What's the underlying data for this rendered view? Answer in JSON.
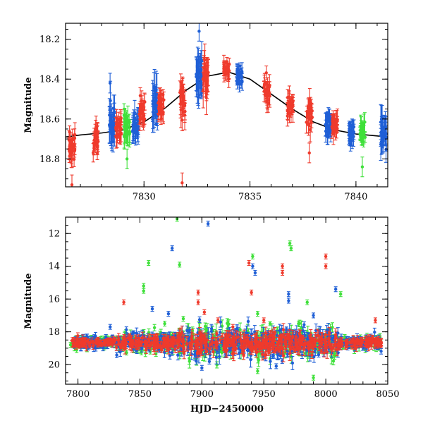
{
  "chart_data": [
    {
      "type": "scatter",
      "title": "",
      "xlabel": "",
      "ylabel": "Magnitude",
      "xlim": [
        7826.3,
        7841.5
      ],
      "ylim": [
        18.94,
        18.12
      ],
      "y_inverted": true,
      "xticks": [
        7830,
        7835,
        7840
      ],
      "yticks": [
        18.2,
        18.4,
        18.6,
        18.8
      ],
      "colors": {
        "blue": "#1f5fd6",
        "red": "#ef3a2c",
        "green": "#3fe03a",
        "model": "#000000"
      },
      "model_curve": {
        "x": [
          7826.3,
          7827,
          7828,
          7829,
          7830,
          7831,
          7832,
          7833,
          7834,
          7835,
          7836,
          7837,
          7838,
          7839,
          7840,
          7841,
          7841.5
        ],
        "y": [
          18.69,
          18.68,
          18.67,
          18.655,
          18.615,
          18.545,
          18.455,
          18.385,
          18.365,
          18.4,
          18.475,
          18.55,
          18.615,
          18.655,
          18.675,
          18.685,
          18.69
        ]
      },
      "clusters": [
        {
          "color": "red",
          "x": 7826.6,
          "y": 18.74,
          "spread": 0.09,
          "err": 0.05
        },
        {
          "color": "red",
          "x": 7827.7,
          "y": 18.7,
          "spread": 0.07,
          "err": 0.04
        },
        {
          "color": "blue",
          "x": 7828.5,
          "y": 18.63,
          "spread": 0.08,
          "err": 0.07
        },
        {
          "color": "red",
          "x": 7828.8,
          "y": 18.65,
          "spread": 0.06,
          "err": 0.04
        },
        {
          "color": "green",
          "x": 7829.2,
          "y": 18.64,
          "spread": 0.08,
          "err": 0.05
        },
        {
          "color": "blue",
          "x": 7829.6,
          "y": 18.64,
          "spread": 0.06,
          "err": 0.05
        },
        {
          "color": "red",
          "x": 7829.9,
          "y": 18.57,
          "spread": 0.07,
          "err": 0.04
        },
        {
          "color": "blue",
          "x": 7830.5,
          "y": 18.55,
          "spread": 0.1,
          "err": 0.07
        },
        {
          "color": "red",
          "x": 7830.8,
          "y": 18.54,
          "spread": 0.06,
          "err": 0.04
        },
        {
          "color": "red",
          "x": 7831.8,
          "y": 18.5,
          "spread": 0.09,
          "err": 0.06
        },
        {
          "color": "blue",
          "x": 7832.6,
          "y": 18.38,
          "spread": 0.09,
          "err": 0.07
        },
        {
          "color": "red",
          "x": 7832.9,
          "y": 18.4,
          "spread": 0.09,
          "err": 0.06
        },
        {
          "color": "red",
          "x": 7833.9,
          "y": 18.35,
          "spread": 0.04,
          "err": 0.03
        },
        {
          "color": "blue",
          "x": 7834.5,
          "y": 18.39,
          "spread": 0.05,
          "err": 0.03
        },
        {
          "color": "red",
          "x": 7835.8,
          "y": 18.46,
          "spread": 0.06,
          "err": 0.04
        },
        {
          "color": "red",
          "x": 7836.9,
          "y": 18.53,
          "spread": 0.06,
          "err": 0.04
        },
        {
          "color": "red",
          "x": 7837.8,
          "y": 18.58,
          "spread": 0.07,
          "err": 0.04
        },
        {
          "color": "blue",
          "x": 7838.7,
          "y": 18.63,
          "spread": 0.05,
          "err": 0.04
        },
        {
          "color": "red",
          "x": 7839.0,
          "y": 18.63,
          "spread": 0.05,
          "err": 0.04
        },
        {
          "color": "blue",
          "x": 7839.8,
          "y": 18.67,
          "spread": 0.05,
          "err": 0.04
        },
        {
          "color": "green",
          "x": 7840.3,
          "y": 18.67,
          "spread": 0.06,
          "err": 0.04
        },
        {
          "color": "blue",
          "x": 7841.3,
          "y": 18.66,
          "spread": 0.08,
          "err": 0.06
        }
      ],
      "outliers": [
        {
          "color": "red",
          "x": 7826.6,
          "y": 18.93
        },
        {
          "color": "red",
          "x": 7831.8,
          "y": 18.92
        },
        {
          "color": "green",
          "x": 7829.2,
          "y": 18.8
        },
        {
          "color": "blue",
          "x": 7832.6,
          "y": 18.16
        },
        {
          "color": "red",
          "x": 7837.8,
          "y": 18.77
        },
        {
          "color": "green",
          "x": 7840.3,
          "y": 18.84
        },
        {
          "color": "blue",
          "x": 7828.4,
          "y": 18.42
        }
      ]
    },
    {
      "type": "scatter",
      "title": "",
      "xlabel": "HJD−2450000",
      "ylabel": "Magnitude",
      "xlim": [
        7790,
        8050
      ],
      "ylim": [
        21.2,
        11
      ],
      "y_inverted": true,
      "xticks": [
        7800,
        7850,
        7900,
        7950,
        8000,
        8050
      ],
      "yticks": [
        12,
        14,
        16,
        18,
        20
      ],
      "colors": {
        "blue": "#1f5fd6",
        "red": "#ef3a2c",
        "green": "#3fe03a"
      },
      "baseline": {
        "x_start": 7800,
        "x_end": 8045,
        "y": 18.65
      },
      "scatter_bands": [
        {
          "x_start": 7795,
          "x_end": 7830,
          "spread": 0.35
        },
        {
          "x_start": 7830,
          "x_end": 7880,
          "spread": 0.6
        },
        {
          "x_start": 7880,
          "x_end": 7960,
          "spread": 1.0
        },
        {
          "x_start": 7960,
          "x_end": 8010,
          "spread": 0.9
        },
        {
          "x_start": 8010,
          "x_end": 8045,
          "spread": 0.4
        }
      ],
      "flares": [
        {
          "color": "green",
          "x": 7794,
          "y": 18.8
        },
        {
          "color": "red",
          "x": 7837,
          "y": 16.2
        },
        {
          "color": "blue",
          "x": 7826,
          "y": 17.7
        },
        {
          "color": "green",
          "x": 7853,
          "y": 15.2
        },
        {
          "color": "green",
          "x": 7853,
          "y": 15.5
        },
        {
          "color": "green",
          "x": 7857,
          "y": 13.8
        },
        {
          "color": "blue",
          "x": 7860,
          "y": 16.6
        },
        {
          "color": "green",
          "x": 7870,
          "y": 17.5
        },
        {
          "color": "blue",
          "x": 7873,
          "y": 16.9
        },
        {
          "color": "blue",
          "x": 7876,
          "y": 12.9
        },
        {
          "color": "green",
          "x": 7880,
          "y": 11.1
        },
        {
          "color": "green",
          "x": 7882,
          "y": 13.9
        },
        {
          "color": "green",
          "x": 7885,
          "y": 17.2
        },
        {
          "color": "blue",
          "x": 7890,
          "y": 17.9
        },
        {
          "color": "red",
          "x": 7897,
          "y": 15.6
        },
        {
          "color": "red",
          "x": 7897,
          "y": 16.2
        },
        {
          "color": "blue",
          "x": 7905,
          "y": 11.4
        },
        {
          "color": "red",
          "x": 7902,
          "y": 16.8
        },
        {
          "color": "red",
          "x": 7913,
          "y": 17.3
        },
        {
          "color": "red",
          "x": 7925,
          "y": 17.7
        },
        {
          "color": "red",
          "x": 7938,
          "y": 13.8
        },
        {
          "color": "red",
          "x": 7940,
          "y": 15.6
        },
        {
          "color": "green",
          "x": 7941,
          "y": 13.4
        },
        {
          "color": "blue",
          "x": 7941,
          "y": 14.0
        },
        {
          "color": "blue",
          "x": 7943,
          "y": 14.4
        },
        {
          "color": "green",
          "x": 7945,
          "y": 16.9
        },
        {
          "color": "red",
          "x": 7950,
          "y": 17.3
        },
        {
          "color": "red",
          "x": 7965,
          "y": 14.0
        },
        {
          "color": "red",
          "x": 7965,
          "y": 14.4
        },
        {
          "color": "green",
          "x": 7971,
          "y": 12.6
        },
        {
          "color": "green",
          "x": 7972,
          "y": 12.9
        },
        {
          "color": "blue",
          "x": 7970,
          "y": 15.7
        },
        {
          "color": "blue",
          "x": 7970,
          "y": 16.1
        },
        {
          "color": "green",
          "x": 7978,
          "y": 17.5
        },
        {
          "color": "green",
          "x": 7985,
          "y": 16.2
        },
        {
          "color": "blue",
          "x": 7990,
          "y": 17.0
        },
        {
          "color": "blue",
          "x": 8008,
          "y": 15.4
        },
        {
          "color": "red",
          "x": 8000,
          "y": 13.4
        },
        {
          "color": "red",
          "x": 8000,
          "y": 14.0
        },
        {
          "color": "green",
          "x": 8012,
          "y": 15.7
        },
        {
          "color": "red",
          "x": 8040,
          "y": 17.3
        },
        {
          "color": "green",
          "x": 7990,
          "y": 20.8
        },
        {
          "color": "blue",
          "x": 7900,
          "y": 20.2
        },
        {
          "color": "green",
          "x": 7945,
          "y": 20.4
        },
        {
          "color": "blue",
          "x": 7960,
          "y": 20.1
        }
      ]
    }
  ]
}
